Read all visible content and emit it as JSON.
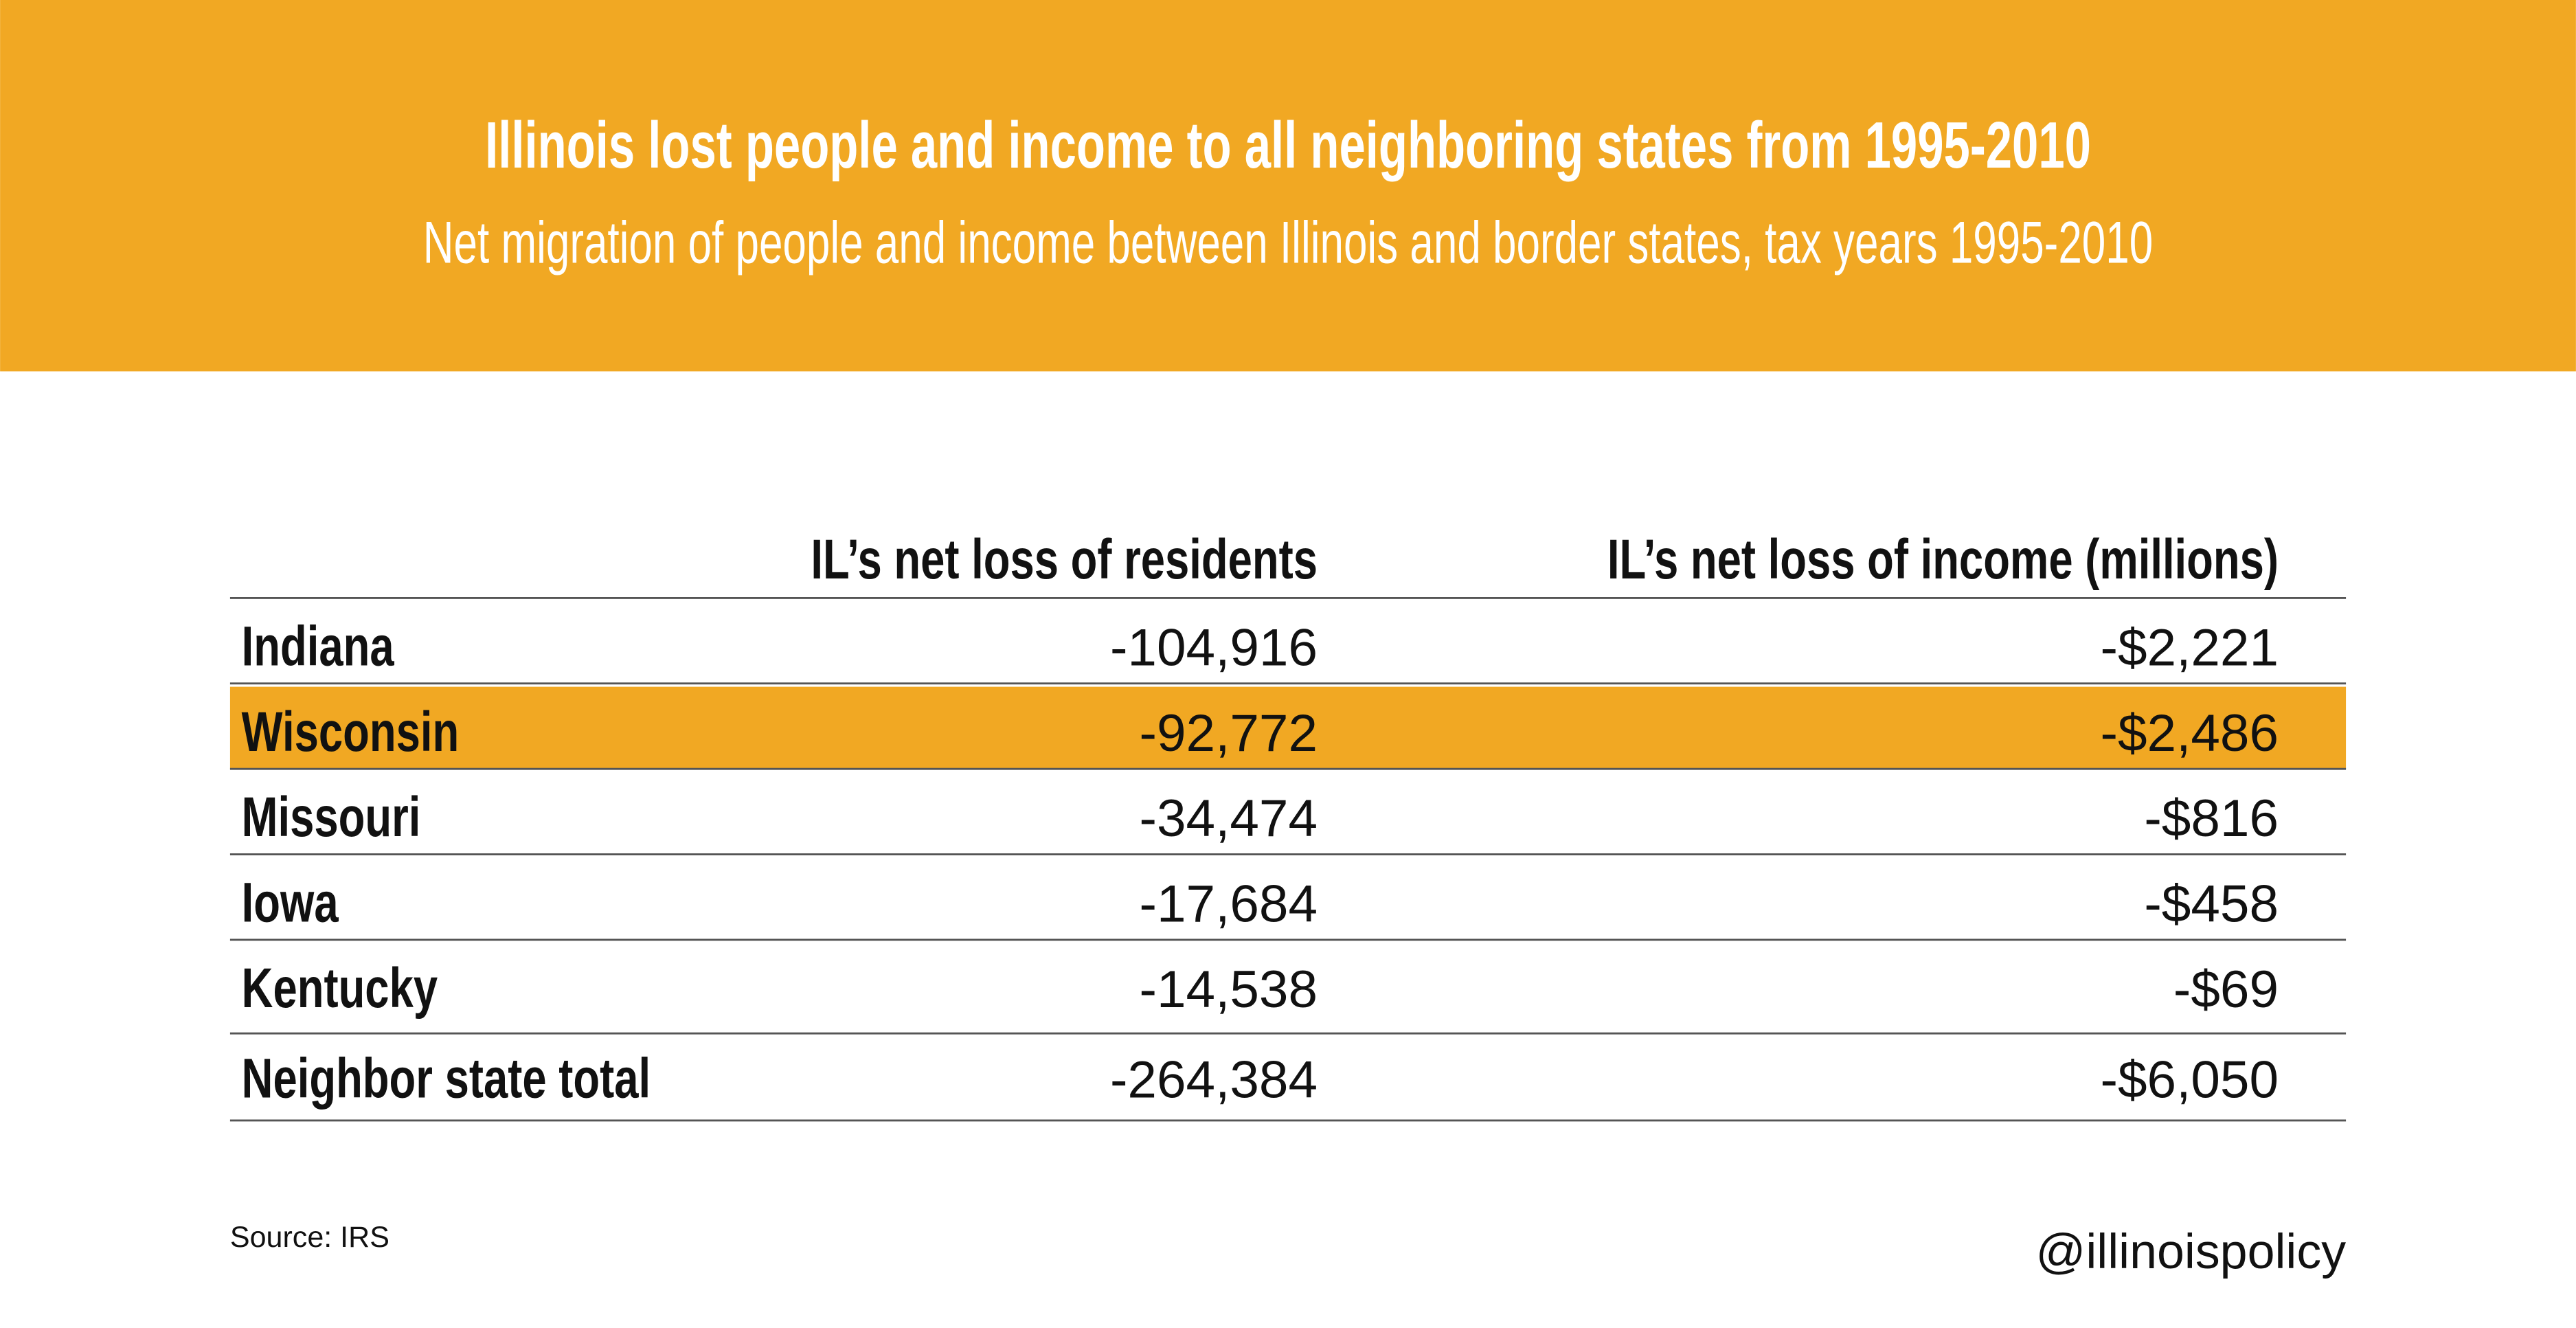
{
  "header": {
    "title": "Illinois lost people and income to all neighboring states from 1995-2010",
    "subtitle": "Net migration of people and income between Illinois and border states, tax years 1995-2010"
  },
  "table": {
    "columns": [
      "",
      "IL’s net loss of residents",
      "IL’s net loss of income (millions)"
    ],
    "rows": [
      [
        "Indiana",
        "-104,916",
        "-$2,221"
      ],
      [
        "Wisconsin",
        "-92,772",
        "-$2,486"
      ],
      [
        "Missouri",
        "-34,474",
        "-$816"
      ],
      [
        "Iowa",
        "-17,684",
        "-$458"
      ],
      [
        "Kentucky",
        "-14,538",
        "-$69"
      ],
      [
        "Neighbor state total",
        "-264,384",
        "-$6,050"
      ]
    ]
  },
  "footer": {
    "source": "Source: IRS",
    "handle": "@illinoispolicy"
  }
}
